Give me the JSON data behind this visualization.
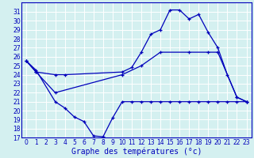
{
  "title": "Graphe des températures (°c)",
  "background_color": "#d4f0f0",
  "grid_color": "#ffffff",
  "line_color": "#0000bb",
  "ylim": [
    17,
    32
  ],
  "yticks": [
    17,
    18,
    19,
    20,
    21,
    22,
    23,
    24,
    25,
    26,
    27,
    28,
    29,
    30,
    31
  ],
  "xlim": [
    -0.5,
    23.5
  ],
  "xticks": [
    0,
    1,
    2,
    3,
    4,
    5,
    6,
    7,
    8,
    9,
    10,
    11,
    12,
    13,
    14,
    15,
    16,
    17,
    18,
    19,
    20,
    21,
    22,
    23
  ],
  "curve_min_x": [
    0,
    1,
    3,
    4,
    5,
    6,
    7,
    8,
    9,
    10,
    11,
    12,
    13,
    14,
    15,
    16,
    17,
    18,
    19,
    20,
    21,
    22,
    23
  ],
  "curve_min_y": [
    25.5,
    24.5,
    21.0,
    20.3,
    19.3,
    18.8,
    17.2,
    17.1,
    19.2,
    21.0,
    21.0,
    21.0,
    21.0,
    21.0,
    21.0,
    21.0,
    21.0,
    21.0,
    21.0,
    21.0,
    21.0,
    21.0,
    21.0
  ],
  "curve_max_x": [
    0,
    1,
    3,
    4,
    10,
    11,
    12,
    13,
    14,
    15,
    16,
    17,
    18,
    19,
    20,
    21,
    22,
    23
  ],
  "curve_max_y": [
    25.5,
    24.3,
    24.0,
    24.0,
    24.3,
    24.8,
    26.5,
    28.5,
    29.0,
    31.2,
    31.2,
    30.2,
    30.7,
    28.7,
    27.0,
    24.0,
    21.5,
    21.0
  ],
  "curve_mean_x": [
    0,
    1,
    3,
    10,
    12,
    14,
    17,
    19,
    20,
    22,
    23
  ],
  "curve_mean_y": [
    25.5,
    24.3,
    22.0,
    24.0,
    25.0,
    26.5,
    26.5,
    26.5,
    26.5,
    21.5,
    21.0
  ],
  "tick_fontsize": 5.5,
  "xlabel_fontsize": 7.0
}
